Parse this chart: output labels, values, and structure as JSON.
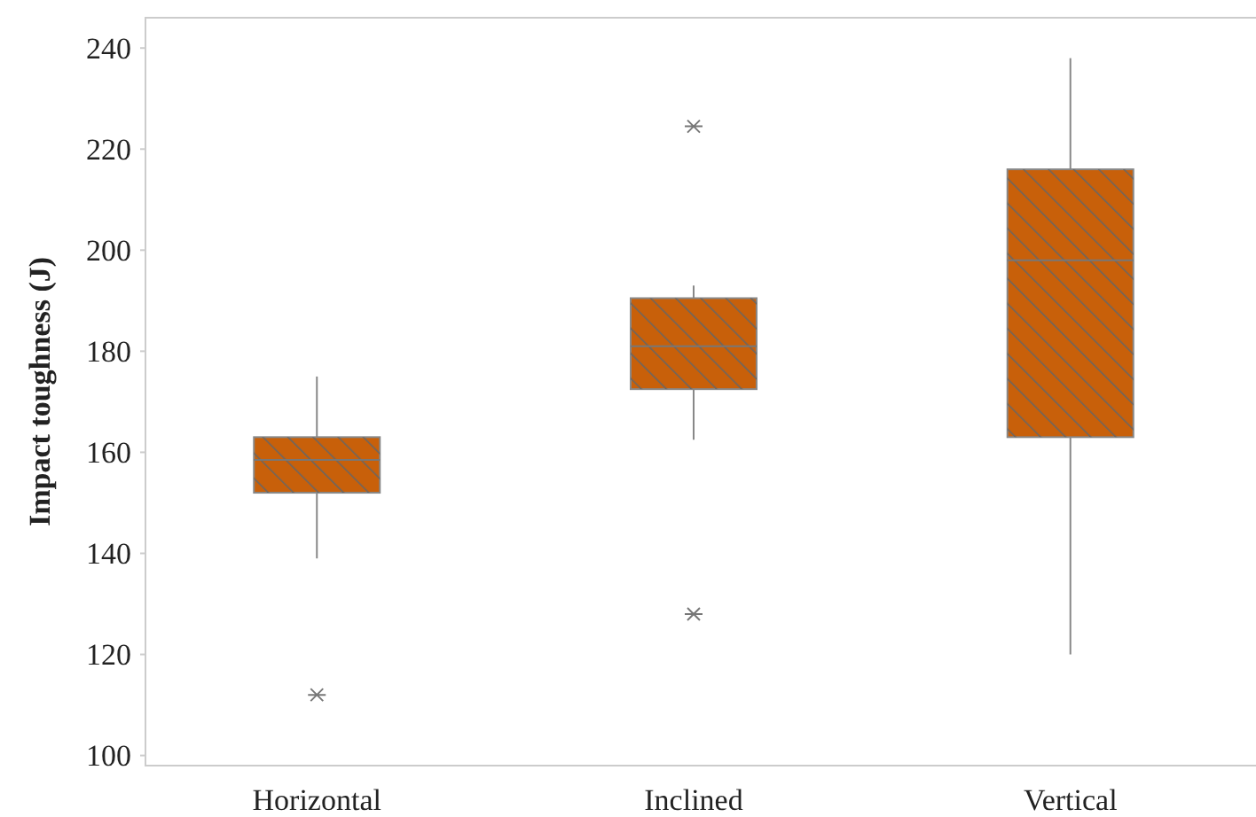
{
  "chart_data": {
    "type": "box",
    "ylabel": "Impact toughness (J)",
    "categories": [
      "Horizontal",
      "Inclined",
      "Vertical"
    ],
    "color": "#c8600a",
    "ylim": [
      98,
      246
    ],
    "yticks": [
      100,
      120,
      140,
      160,
      180,
      200,
      220,
      240
    ],
    "grid": false,
    "marker": "star",
    "boxes": [
      {
        "low": 139,
        "q1": 152,
        "median": 158.5,
        "q3": 163,
        "high": 175,
        "outliers": [
          112
        ]
      },
      {
        "low": 162.5,
        "q1": 172.5,
        "median": 181,
        "q3": 190.5,
        "high": 193,
        "outliers": [
          224.5,
          128
        ]
      },
      {
        "low": 120,
        "q1": 163,
        "median": 198,
        "q3": 216,
        "high": 238
      }
    ]
  }
}
